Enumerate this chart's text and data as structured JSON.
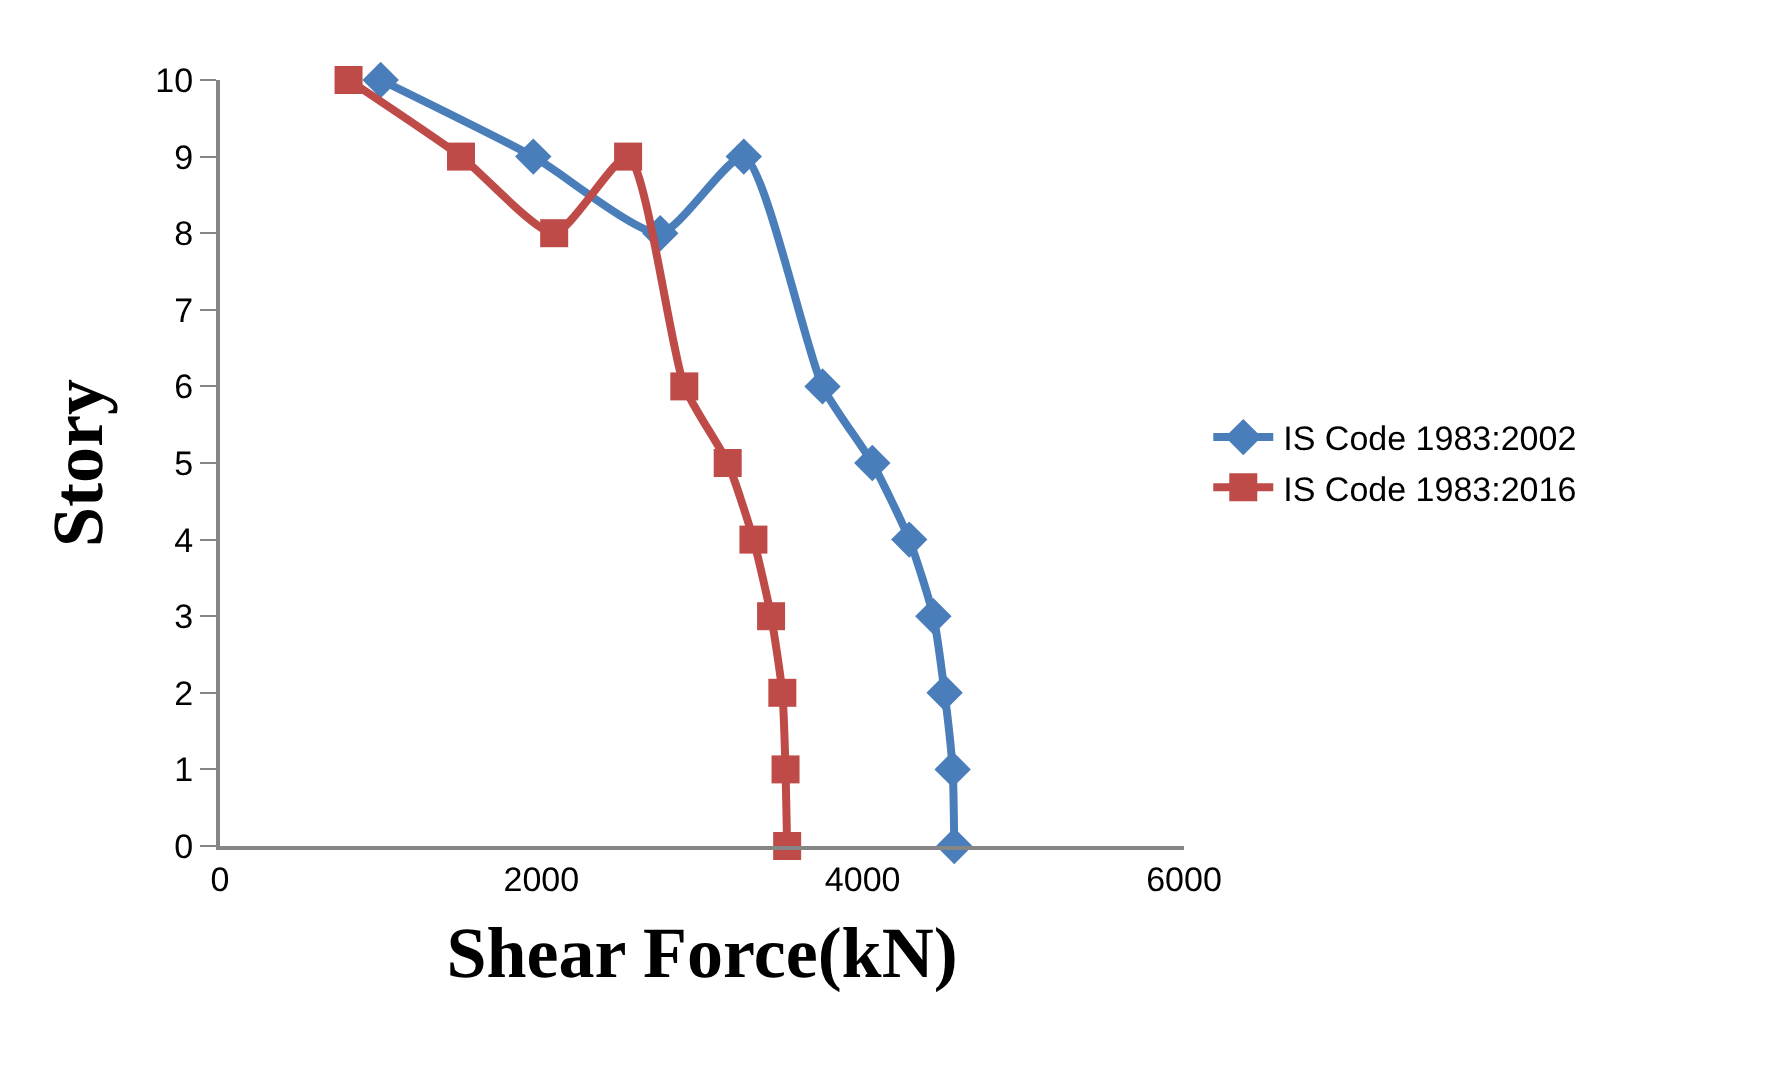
{
  "chart_data": {
    "type": "line",
    "xlabel": "Shear Force(kN)",
    "ylabel": "Story",
    "series": [
      {
        "name": "IS Code 1983:2002",
        "color": "#4a7ebb",
        "marker": "diamond",
        "x": [
          1000,
          1950,
          2740,
          3260,
          3750,
          4060,
          4290,
          4440,
          4510,
          4560,
          4570
        ],
        "values": [
          10,
          9,
          8,
          9,
          6,
          5,
          4,
          3,
          2,
          1,
          0
        ]
      },
      {
        "name": "IS Code 1983:2016",
        "color": "#be4b48",
        "marker": "square",
        "x": [
          800,
          1500,
          2080,
          2540,
          2890,
          3160,
          3320,
          3430,
          3500,
          3520,
          3530
        ],
        "values": [
          10,
          9,
          8,
          9,
          6,
          5,
          4,
          3,
          2,
          1,
          0
        ]
      }
    ],
    "xlim": [
      0,
      6000
    ],
    "xticks": [
      0,
      2000,
      4000,
      6000
    ],
    "ylim": [
      0,
      10
    ],
    "yticks": [
      0,
      1,
      2,
      3,
      4,
      5,
      6,
      7,
      8,
      9,
      10
    ],
    "legend": "right",
    "line_style": "solid"
  }
}
